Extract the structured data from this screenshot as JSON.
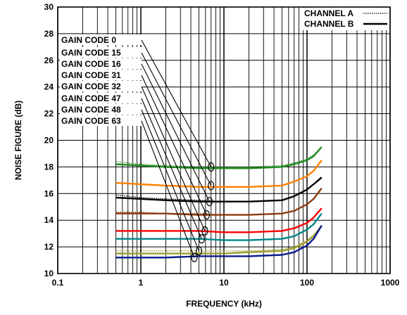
{
  "chart_data": {
    "type": "line",
    "title": "",
    "xlabel": "FREQUENCY (kHz)",
    "ylabel": "NOISE FIGURE (dB)",
    "x_scale": "log",
    "xlim": [
      0.1,
      1000
    ],
    "ylim": [
      10,
      30
    ],
    "x_ticks": [
      "0.1",
      "1",
      "10",
      "100",
      "1000"
    ],
    "y_ticks": [
      "10",
      "12",
      "14",
      "16",
      "18",
      "20",
      "22",
      "24",
      "26",
      "28",
      "30"
    ],
    "grid": true,
    "legend": {
      "placement": "top-right",
      "entries": [
        {
          "label": "CHANNEL A",
          "style": "dotted"
        },
        {
          "label": "CHANNEL B",
          "style": "solid"
        }
      ]
    },
    "annotations": [
      "GAIN CODE 0",
      "GAIN CODE 15",
      "GAIN CODE 16",
      "GAIN CODE 31",
      "GAIN CODE 32",
      "GAIN CODE 47",
      "GAIN CODE 48",
      "GAIN CODE 63"
    ],
    "x": [
      0.5,
      1,
      2,
      5,
      10,
      20,
      50,
      70,
      100,
      120,
      150
    ],
    "series": [
      {
        "color": "#1f8a1f",
        "channel_a": [
          18.4,
          18.2,
          18.1,
          18.0,
          18.0,
          18.0,
          18.1,
          18.3,
          18.6,
          18.9,
          19.5
        ],
        "channel_b": [
          18.2,
          18.1,
          18.0,
          17.9,
          17.9,
          17.9,
          18.0,
          18.2,
          18.5,
          18.8,
          19.5
        ]
      },
      {
        "color": "#ff8000",
        "channel_a": [
          16.8,
          16.7,
          16.6,
          16.5,
          16.5,
          16.5,
          16.6,
          16.9,
          17.3,
          17.7,
          18.5
        ],
        "channel_b": [
          16.8,
          16.7,
          16.6,
          16.5,
          16.5,
          16.5,
          16.6,
          16.9,
          17.3,
          17.7,
          18.5
        ]
      },
      {
        "color": "#000000",
        "channel_a": [
          15.9,
          15.7,
          15.6,
          15.5,
          15.4,
          15.4,
          15.5,
          15.8,
          16.3,
          16.7,
          17.3
        ],
        "channel_b": [
          15.7,
          15.6,
          15.5,
          15.4,
          15.4,
          15.4,
          15.5,
          15.8,
          16.3,
          16.7,
          17.2
        ]
      },
      {
        "color": "#8b3a0e",
        "channel_a": [
          14.6,
          14.6,
          14.5,
          14.5,
          14.4,
          14.4,
          14.5,
          14.7,
          15.2,
          15.6,
          16.4
        ],
        "channel_b": [
          14.5,
          14.5,
          14.5,
          14.4,
          14.4,
          14.4,
          14.5,
          14.7,
          15.2,
          15.6,
          16.4
        ]
      },
      {
        "color": "#ff0000",
        "channel_a": [
          13.2,
          13.2,
          13.2,
          13.2,
          13.1,
          13.1,
          13.2,
          13.4,
          13.8,
          14.2,
          14.9
        ],
        "channel_b": [
          13.2,
          13.2,
          13.2,
          13.2,
          13.1,
          13.1,
          13.2,
          13.4,
          13.8,
          14.2,
          14.9
        ]
      },
      {
        "color": "#00868b",
        "channel_a": [
          12.6,
          12.6,
          12.6,
          12.6,
          12.5,
          12.5,
          12.6,
          12.8,
          13.3,
          13.7,
          14.5
        ],
        "channel_b": [
          12.6,
          12.6,
          12.6,
          12.6,
          12.5,
          12.5,
          12.6,
          12.8,
          13.3,
          13.7,
          14.5
        ]
      },
      {
        "color": "#9c9c30",
        "channel_a": [
          11.7,
          11.7,
          11.7,
          11.7,
          11.7,
          11.7,
          11.8,
          12.0,
          12.5,
          12.9,
          13.6
        ],
        "channel_b": [
          11.5,
          11.5,
          11.5,
          11.5,
          11.5,
          11.6,
          11.7,
          11.9,
          12.4,
          12.8,
          13.6
        ]
      },
      {
        "color": "#0a1a8a",
        "channel_a": [
          11.2,
          11.2,
          11.2,
          11.3,
          11.3,
          11.3,
          11.4,
          11.6,
          12.1,
          12.6,
          13.6
        ],
        "channel_b": [
          11.2,
          11.2,
          11.2,
          11.3,
          11.3,
          11.3,
          11.4,
          11.6,
          12.1,
          12.6,
          13.6
        ]
      }
    ]
  }
}
